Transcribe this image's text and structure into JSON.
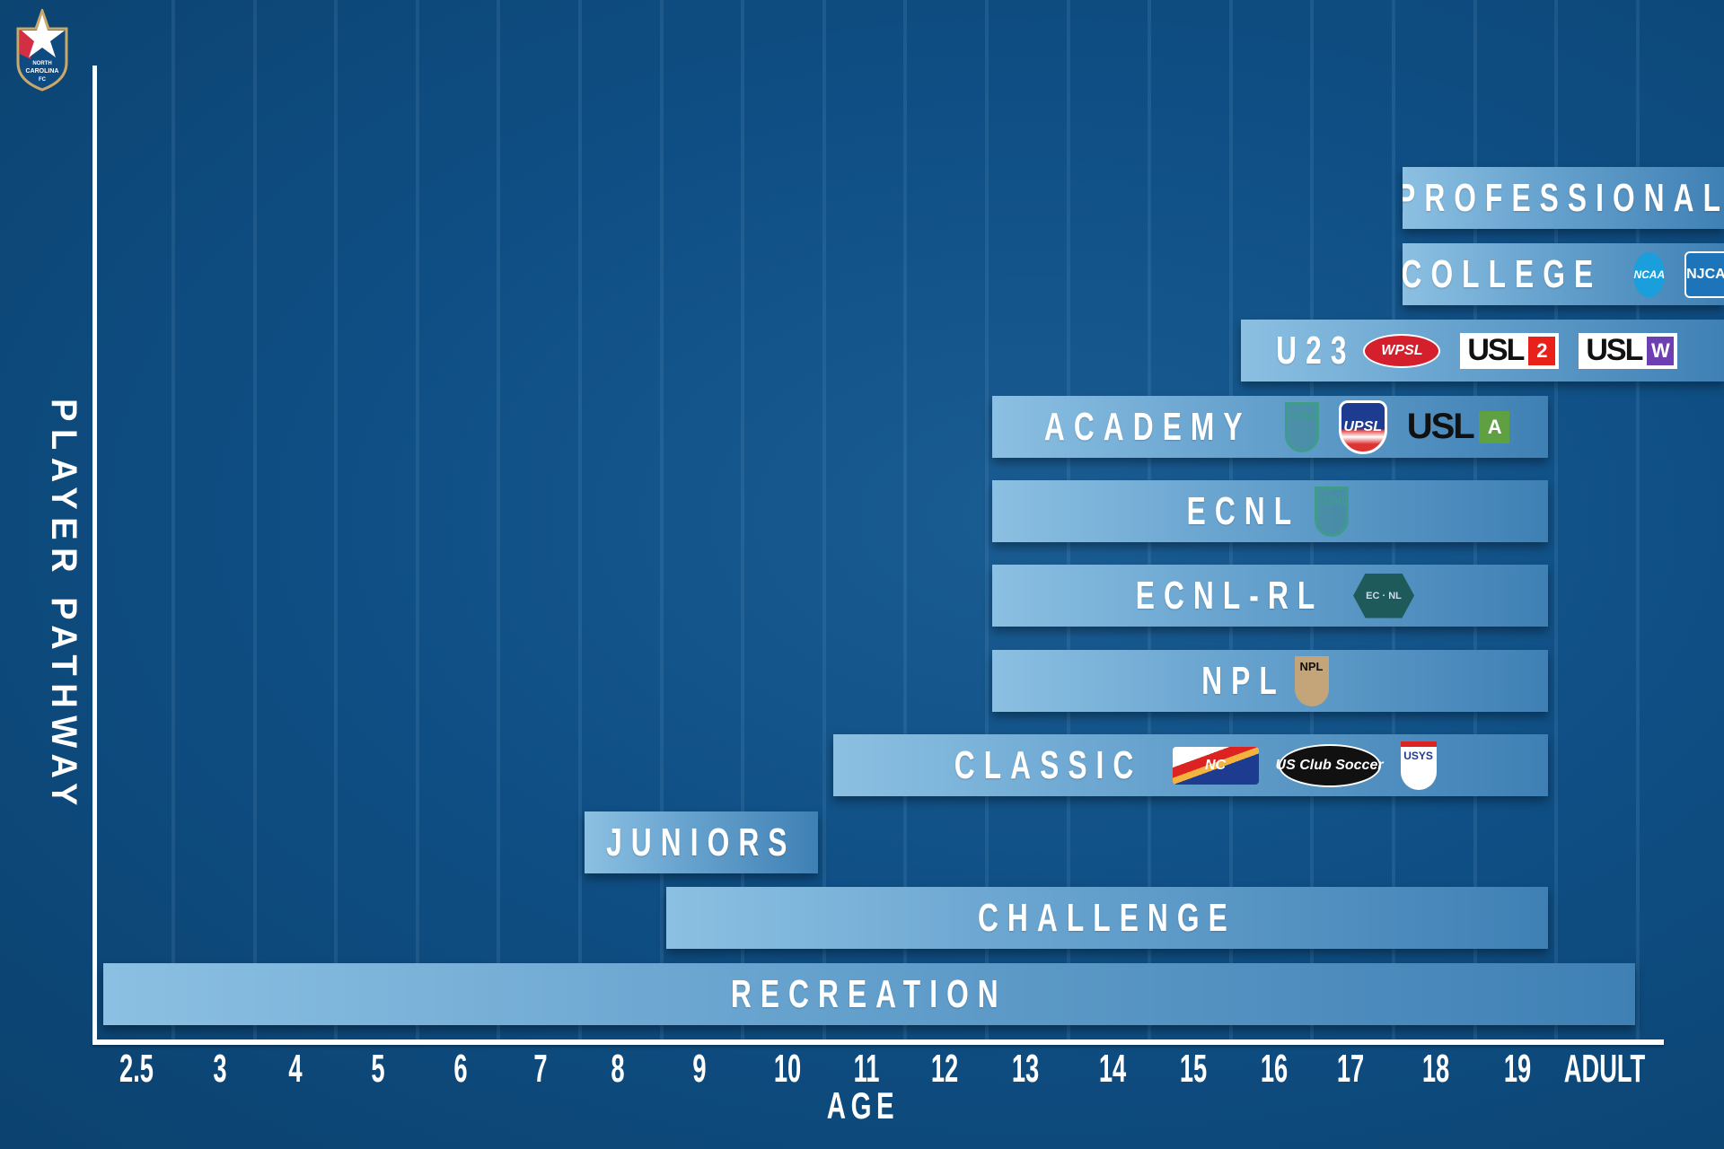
{
  "crest": {
    "line1": "NORTH",
    "line2": "CAROLINA",
    "line3": "FC"
  },
  "colors": {
    "background": "#0f4f85",
    "bar_light": "#8cc0e2",
    "bar_dark": "#3f80b4",
    "axis": "#ffffff"
  },
  "chart_data": {
    "type": "bar",
    "orientation": "horizontal-range",
    "title": "",
    "xlabel": "AGE",
    "ylabel": "PLAYER PATHWAY",
    "x_ticks": [
      "2.5",
      "3",
      "4",
      "5",
      "6",
      "7",
      "8",
      "9",
      "10",
      "11",
      "12",
      "13",
      "14",
      "15",
      "16",
      "17",
      "18",
      "19",
      "ADULT"
    ],
    "x_tick_values": [
      2.5,
      3,
      4,
      5,
      6,
      7,
      8,
      9,
      10,
      11,
      12,
      13,
      14,
      15,
      16,
      17,
      18,
      19,
      20
    ],
    "grid": true,
    "bars": [
      {
        "label": "PROFESSIONAL",
        "start": 18,
        "end": 20,
        "open_end": true,
        "logos": []
      },
      {
        "label": "COLLEGE",
        "start": 18,
        "end": 20,
        "open_end": true,
        "logos": [
          {
            "name": "ncaa",
            "text": "NCAA"
          },
          {
            "name": "njcaa",
            "text": "NJCAA"
          }
        ]
      },
      {
        "label": "U23",
        "start": 16,
        "end": 20,
        "open_end": true,
        "logos": [
          {
            "name": "wpsl",
            "text": "WPSL"
          },
          {
            "name": "usl2",
            "text": "USL",
            "badge": "2",
            "badge_color": "#e8221b"
          },
          {
            "name": "uslw",
            "text": "USL",
            "badge": "W",
            "badge_color": "#6d3fb3"
          }
        ]
      },
      {
        "label": "ACADEMY",
        "start": 13,
        "end": 19,
        "logos": [
          {
            "name": "ecnl",
            "text": "ECNL"
          },
          {
            "name": "upsl",
            "text": "UPSL"
          },
          {
            "name": "usla",
            "text": "USL",
            "badge": "A"
          }
        ]
      },
      {
        "label": "ECNL",
        "start": 13,
        "end": 19,
        "logos": [
          {
            "name": "ecnl",
            "text": "ECNL"
          }
        ]
      },
      {
        "label": "ECNL-RL",
        "start": 13,
        "end": 19,
        "logos": [
          {
            "name": "ecnl-rl",
            "text": "EC · NL"
          }
        ]
      },
      {
        "label": "NPL",
        "start": 13,
        "end": 19,
        "logos": [
          {
            "name": "npl",
            "text": "NPL"
          }
        ]
      },
      {
        "label": "CLASSIC",
        "start": 11,
        "end": 19,
        "logos": [
          {
            "name": "nc-youth-soccer",
            "text": "NC"
          },
          {
            "name": "us-club-soccer",
            "text": "US Club Soccer"
          },
          {
            "name": "usys",
            "text": "USYS"
          }
        ]
      },
      {
        "label": "JUNIORS",
        "start": 8,
        "end": 10,
        "logos": []
      },
      {
        "label": "CHALLENGE",
        "start": 9,
        "end": 19,
        "logos": []
      },
      {
        "label": "RECREATION",
        "start": 2.5,
        "end": 20,
        "logos": []
      }
    ]
  }
}
